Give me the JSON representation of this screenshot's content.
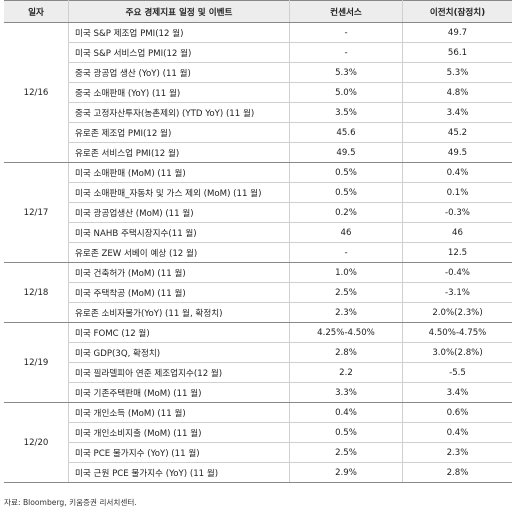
{
  "headers": {
    "date": "일자",
    "event": "주요 경제지표 일정 및 이벤트",
    "consensus": "컨센서스",
    "previous": "이전치(잠정치)"
  },
  "groups": [
    {
      "date": "12/16",
      "rows": [
        {
          "event": "미국 S&P 제조업 PMI(12 월)",
          "consensus": "-",
          "previous": "49.7"
        },
        {
          "event": "미국 S&P 서비스업 PMI(12 월)",
          "consensus": "-",
          "previous": "56.1"
        },
        {
          "event": "중국 광공업 생산 (YoY) (11 월)",
          "consensus": "5.3%",
          "previous": "5.3%"
        },
        {
          "event": "중국 소매판매 (YoY) (11 월)",
          "consensus": "5.0%",
          "previous": "4.8%"
        },
        {
          "event": "중국 고정자산투자(농촌제외) (YTD YoY) (11 월)",
          "consensus": "3.5%",
          "previous": "3.4%"
        },
        {
          "event": "유로존 제조업 PMI(12 월)",
          "consensus": "45.6",
          "previous": "45.2"
        },
        {
          "event": "유로존 서비스업 PMI(12 월)",
          "consensus": "49.5",
          "previous": "49.5"
        }
      ]
    },
    {
      "date": "12/17",
      "rows": [
        {
          "event": "미국 소매판매 (MoM) (11 월)",
          "consensus": "0.5%",
          "previous": "0.4%"
        },
        {
          "event": "미국 소매판매_자동차 및 가스 제외 (MoM) (11 월)",
          "consensus": "0.5%",
          "previous": "0.1%"
        },
        {
          "event": "미국 광공업생산 (MoM) (11 월)",
          "consensus": "0.2%",
          "previous": "-0.3%"
        },
        {
          "event": "미국 NAHB 주택시장지수(11 월)",
          "consensus": "46",
          "previous": "46"
        },
        {
          "event": "유로존 ZEW 서베이 예상 (12 월)",
          "consensus": "-",
          "previous": "12.5"
        }
      ]
    },
    {
      "date": "12/18",
      "rows": [
        {
          "event": "미국 건축허가 (MoM) (11 월)",
          "consensus": "1.0%",
          "previous": "-0.4%"
        },
        {
          "event": "미국 주택착공 (MoM) (11 월)",
          "consensus": "2.5%",
          "previous": "-3.1%"
        },
        {
          "event": "유로존 소비자물가(YoY) (11 월, 확정치)",
          "consensus": "2.3%",
          "previous": "2.0%(2.3%)"
        }
      ]
    },
    {
      "date": "12/19",
      "rows": [
        {
          "event": "미국 FOMC (12 월)",
          "consensus": "4.25%-4.50%",
          "previous": "4.50%-4.75%"
        },
        {
          "event": "미국 GDP(3Q, 확정치)",
          "consensus": "2.8%",
          "previous": "3.0%(2.8%)"
        },
        {
          "event": "미국 필라델피아 연준 제조업지수(12 월)",
          "consensus": "2.2",
          "previous": "-5.5"
        },
        {
          "event": "미국 기존주택판매 (MoM) (11 월)",
          "consensus": "3.3%",
          "previous": "3.4%"
        }
      ]
    },
    {
      "date": "12/20",
      "rows": [
        {
          "event": "미국 개인소득 (MoM) (11 월)",
          "consensus": "0.4%",
          "previous": "0.6%"
        },
        {
          "event": "미국 개인소비지출 (MoM) (11 월)",
          "consensus": "0.5%",
          "previous": "0.4%"
        },
        {
          "event": "미국 PCE 물가지수 (YoY) (11 월)",
          "consensus": "2.5%",
          "previous": "2.3%"
        },
        {
          "event": "미국 근원 PCE 물가지수 (YoY) (11 월)",
          "consensus": "2.9%",
          "previous": "2.8%"
        }
      ]
    }
  ],
  "source": "자료: Bloomberg, 키움증권 리서치센터."
}
